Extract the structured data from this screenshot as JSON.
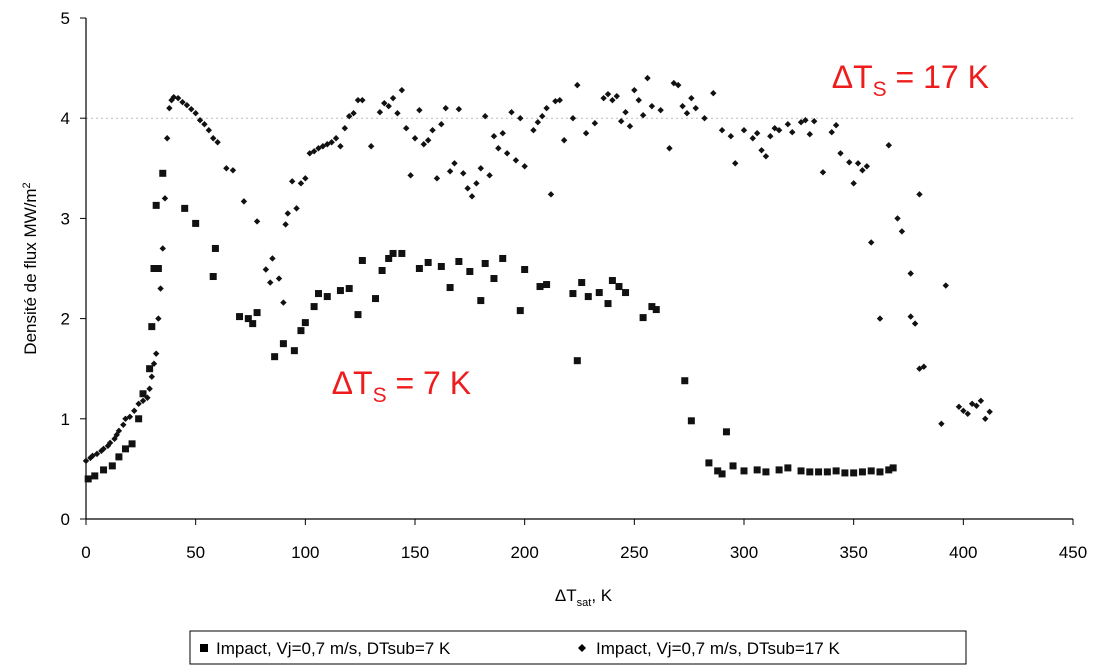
{
  "chart_data": {
    "type": "scatter",
    "title": "",
    "xlabel_main": "ΔT",
    "xlabel_sub": "sat",
    "xlabel_tail": ", K",
    "ylabel_main": "Densité de flux MW/m",
    "ylabel_sup": "2",
    "xlim": [
      0,
      450
    ],
    "ylim": [
      0,
      5
    ],
    "xticks": [
      "0",
      "50",
      "100",
      "150",
      "200",
      "250",
      "300",
      "350",
      "400",
      "450"
    ],
    "yticks": [
      "0",
      "1",
      "2",
      "3",
      "4",
      "5"
    ],
    "grid": "horizontal dotted line at y=4",
    "legend_position": "bottom",
    "annotations": [
      {
        "prefix": "ΔT",
        "sub": "S",
        "suffix": " = 17 K",
        "color": "#ee1c1c",
        "x": 340,
        "y": 4.3
      },
      {
        "prefix": "ΔT",
        "sub": "S",
        "suffix": " = 7 K",
        "color": "#ee1c1c",
        "x": 112,
        "y": 1.25
      }
    ],
    "series": [
      {
        "name": "Impact, Vj=0,7 m/s, DTsub=7 K",
        "marker": "square",
        "points": [
          [
            1,
            0.4
          ],
          [
            4,
            0.43
          ],
          [
            8,
            0.49
          ],
          [
            12,
            0.53
          ],
          [
            15,
            0.62
          ],
          [
            18,
            0.7
          ],
          [
            21,
            0.75
          ],
          [
            24,
            1.0
          ],
          [
            26,
            1.25
          ],
          [
            29,
            1.5
          ],
          [
            30,
            1.92
          ],
          [
            31,
            2.5
          ],
          [
            32,
            3.13
          ],
          [
            33,
            2.5
          ],
          [
            35,
            3.45
          ],
          [
            45,
            3.1
          ],
          [
            50,
            2.95
          ],
          [
            58,
            2.42
          ],
          [
            59,
            2.7
          ],
          [
            70,
            2.02
          ],
          [
            74,
            2.0
          ],
          [
            76,
            1.95
          ],
          [
            78,
            2.06
          ],
          [
            86,
            1.62
          ],
          [
            90,
            1.75
          ],
          [
            95,
            1.68
          ],
          [
            98,
            1.88
          ],
          [
            100,
            1.96
          ],
          [
            104,
            2.12
          ],
          [
            106,
            2.25
          ],
          [
            110,
            2.22
          ],
          [
            116,
            2.28
          ],
          [
            120,
            2.3
          ],
          [
            124,
            2.04
          ],
          [
            126,
            2.58
          ],
          [
            132,
            2.2
          ],
          [
            135,
            2.48
          ],
          [
            138,
            2.6
          ],
          [
            140,
            2.65
          ],
          [
            144,
            2.65
          ],
          [
            152,
            2.5
          ],
          [
            156,
            2.56
          ],
          [
            162,
            2.52
          ],
          [
            166,
            2.31
          ],
          [
            170,
            2.57
          ],
          [
            175,
            2.47
          ],
          [
            180,
            2.18
          ],
          [
            182,
            2.55
          ],
          [
            186,
            2.4
          ],
          [
            190,
            2.6
          ],
          [
            198,
            2.08
          ],
          [
            200,
            2.49
          ],
          [
            207,
            2.32
          ],
          [
            210,
            2.34
          ],
          [
            222,
            2.25
          ],
          [
            224,
            1.58
          ],
          [
            226,
            2.36
          ],
          [
            229,
            2.22
          ],
          [
            234,
            2.26
          ],
          [
            238,
            2.15
          ],
          [
            240,
            2.38
          ],
          [
            243,
            2.32
          ],
          [
            246,
            2.26
          ],
          [
            254,
            2.01
          ],
          [
            258,
            2.12
          ],
          [
            260,
            2.09
          ],
          [
            273,
            1.38
          ],
          [
            276,
            0.98
          ],
          [
            284,
            0.56
          ],
          [
            288,
            0.48
          ],
          [
            290,
            0.45
          ],
          [
            292,
            0.87
          ],
          [
            295,
            0.53
          ],
          [
            300,
            0.48
          ],
          [
            306,
            0.49
          ],
          [
            310,
            0.47
          ],
          [
            316,
            0.49
          ],
          [
            320,
            0.51
          ],
          [
            326,
            0.48
          ],
          [
            330,
            0.47
          ],
          [
            334,
            0.47
          ],
          [
            338,
            0.47
          ],
          [
            342,
            0.48
          ],
          [
            346,
            0.46
          ],
          [
            350,
            0.46
          ],
          [
            354,
            0.47
          ],
          [
            358,
            0.48
          ],
          [
            362,
            0.47
          ],
          [
            366,
            0.49
          ],
          [
            368,
            0.51
          ]
        ]
      },
      {
        "name": "Impact, Vj=0,7 m/s, DTsub=17 K",
        "marker": "diamond",
        "points": [
          [
            0,
            0.58
          ],
          [
            2,
            0.61
          ],
          [
            3,
            0.63
          ],
          [
            5,
            0.65
          ],
          [
            7,
            0.68
          ],
          [
            8,
            0.7
          ],
          [
            10,
            0.73
          ],
          [
            11,
            0.76
          ],
          [
            13,
            0.8
          ],
          [
            14,
            0.84
          ],
          [
            15,
            0.88
          ],
          [
            17,
            0.94
          ],
          [
            18,
            1.0
          ],
          [
            20,
            1.02
          ],
          [
            22,
            1.08
          ],
          [
            24,
            1.15
          ],
          [
            26,
            1.18
          ],
          [
            28,
            1.21
          ],
          [
            29,
            1.3
          ],
          [
            30,
            1.42
          ],
          [
            31,
            1.55
          ],
          [
            32,
            1.65
          ],
          [
            33,
            2.0
          ],
          [
            34,
            2.3
          ],
          [
            35,
            2.7
          ],
          [
            36,
            3.2
          ],
          [
            37,
            3.8
          ],
          [
            38,
            4.1
          ],
          [
            39,
            4.18
          ],
          [
            40,
            4.21
          ],
          [
            42,
            4.2
          ],
          [
            44,
            4.16
          ],
          [
            46,
            4.13
          ],
          [
            48,
            4.09
          ],
          [
            50,
            4.05
          ],
          [
            52,
            3.98
          ],
          [
            54,
            3.94
          ],
          [
            56,
            3.88
          ],
          [
            58,
            3.8
          ],
          [
            60,
            3.76
          ],
          [
            64,
            3.5
          ],
          [
            67,
            3.48
          ],
          [
            72,
            3.17
          ],
          [
            78,
            2.97
          ],
          [
            82,
            2.49
          ],
          [
            84,
            2.36
          ],
          [
            85,
            2.6
          ],
          [
            88,
            2.4
          ],
          [
            90,
            2.16
          ],
          [
            91,
            2.94
          ],
          [
            92,
            3.05
          ],
          [
            94,
            3.37
          ],
          [
            96,
            3.1
          ],
          [
            98,
            3.35
          ],
          [
            100,
            3.4
          ],
          [
            102,
            3.65
          ],
          [
            104,
            3.67
          ],
          [
            106,
            3.7
          ],
          [
            108,
            3.72
          ],
          [
            110,
            3.74
          ],
          [
            112,
            3.76
          ],
          [
            114,
            3.8
          ],
          [
            116,
            3.72
          ],
          [
            118,
            3.9
          ],
          [
            120,
            4.02
          ],
          [
            122,
            4.05
          ],
          [
            124,
            4.18
          ],
          [
            126,
            4.18
          ],
          [
            130,
            3.72
          ],
          [
            134,
            4.06
          ],
          [
            136,
            4.15
          ],
          [
            138,
            4.12
          ],
          [
            140,
            4.2
          ],
          [
            142,
            4.05
          ],
          [
            144,
            4.28
          ],
          [
            146,
            3.9
          ],
          [
            148,
            3.43
          ],
          [
            150,
            3.8
          ],
          [
            152,
            4.08
          ],
          [
            154,
            3.74
          ],
          [
            156,
            3.78
          ],
          [
            158,
            3.88
          ],
          [
            160,
            3.4
          ],
          [
            162,
            3.94
          ],
          [
            164,
            4.1
          ],
          [
            166,
            3.47
          ],
          [
            168,
            3.55
          ],
          [
            170,
            4.09
          ],
          [
            172,
            3.45
          ],
          [
            174,
            3.3
          ],
          [
            176,
            3.22
          ],
          [
            178,
            3.35
          ],
          [
            180,
            3.5
          ],
          [
            182,
            4.02
          ],
          [
            184,
            3.43
          ],
          [
            186,
            3.82
          ],
          [
            188,
            3.7
          ],
          [
            190,
            3.85
          ],
          [
            192,
            3.65
          ],
          [
            194,
            4.06
          ],
          [
            196,
            3.58
          ],
          [
            198,
            4.0
          ],
          [
            200,
            3.52
          ],
          [
            204,
            3.88
          ],
          [
            206,
            3.96
          ],
          [
            208,
            4.02
          ],
          [
            210,
            4.1
          ],
          [
            212,
            3.24
          ],
          [
            214,
            4.17
          ],
          [
            216,
            4.18
          ],
          [
            218,
            3.78
          ],
          [
            222,
            4.0
          ],
          [
            224,
            4.33
          ],
          [
            228,
            3.85
          ],
          [
            232,
            3.95
          ],
          [
            236,
            4.2
          ],
          [
            238,
            4.24
          ],
          [
            240,
            4.18
          ],
          [
            242,
            4.22
          ],
          [
            244,
            3.97
          ],
          [
            246,
            4.06
          ],
          [
            248,
            3.92
          ],
          [
            250,
            4.28
          ],
          [
            252,
            4.18
          ],
          [
            254,
            4.03
          ],
          [
            256,
            4.4
          ],
          [
            258,
            4.12
          ],
          [
            262,
            4.08
          ],
          [
            266,
            3.7
          ],
          [
            268,
            4.35
          ],
          [
            270,
            4.33
          ],
          [
            272,
            4.12
          ],
          [
            274,
            4.05
          ],
          [
            276,
            4.2
          ],
          [
            278,
            4.1
          ],
          [
            282,
            4.0
          ],
          [
            286,
            4.25
          ],
          [
            290,
            3.88
          ],
          [
            294,
            3.82
          ],
          [
            296,
            3.55
          ],
          [
            300,
            3.88
          ],
          [
            304,
            3.8
          ],
          [
            306,
            3.85
          ],
          [
            308,
            3.68
          ],
          [
            310,
            3.62
          ],
          [
            312,
            3.82
          ],
          [
            314,
            3.9
          ],
          [
            316,
            3.88
          ],
          [
            320,
            3.94
          ],
          [
            322,
            3.86
          ],
          [
            326,
            3.96
          ],
          [
            328,
            3.98
          ],
          [
            330,
            3.84
          ],
          [
            332,
            3.97
          ],
          [
            336,
            3.46
          ],
          [
            340,
            3.86
          ],
          [
            342,
            3.93
          ],
          [
            344,
            3.65
          ],
          [
            348,
            3.56
          ],
          [
            350,
            3.35
          ],
          [
            352,
            3.55
          ],
          [
            354,
            3.48
          ],
          [
            356,
            3.52
          ],
          [
            358,
            2.76
          ],
          [
            362,
            2.0
          ],
          [
            366,
            3.73
          ],
          [
            370,
            3.0
          ],
          [
            372,
            2.87
          ],
          [
            376,
            2.02
          ],
          [
            378,
            1.95
          ],
          [
            380,
            1.5
          ],
          [
            382,
            1.52
          ],
          [
            390,
            0.95
          ],
          [
            392,
            2.33
          ],
          [
            398,
            1.12
          ],
          [
            400,
            1.08
          ],
          [
            402,
            1.05
          ],
          [
            404,
            1.15
          ],
          [
            406,
            1.13
          ],
          [
            408,
            1.18
          ],
          [
            410,
            1.0
          ],
          [
            412,
            1.07
          ],
          [
            376,
            2.45
          ],
          [
            380,
            3.24
          ]
        ]
      }
    ]
  }
}
